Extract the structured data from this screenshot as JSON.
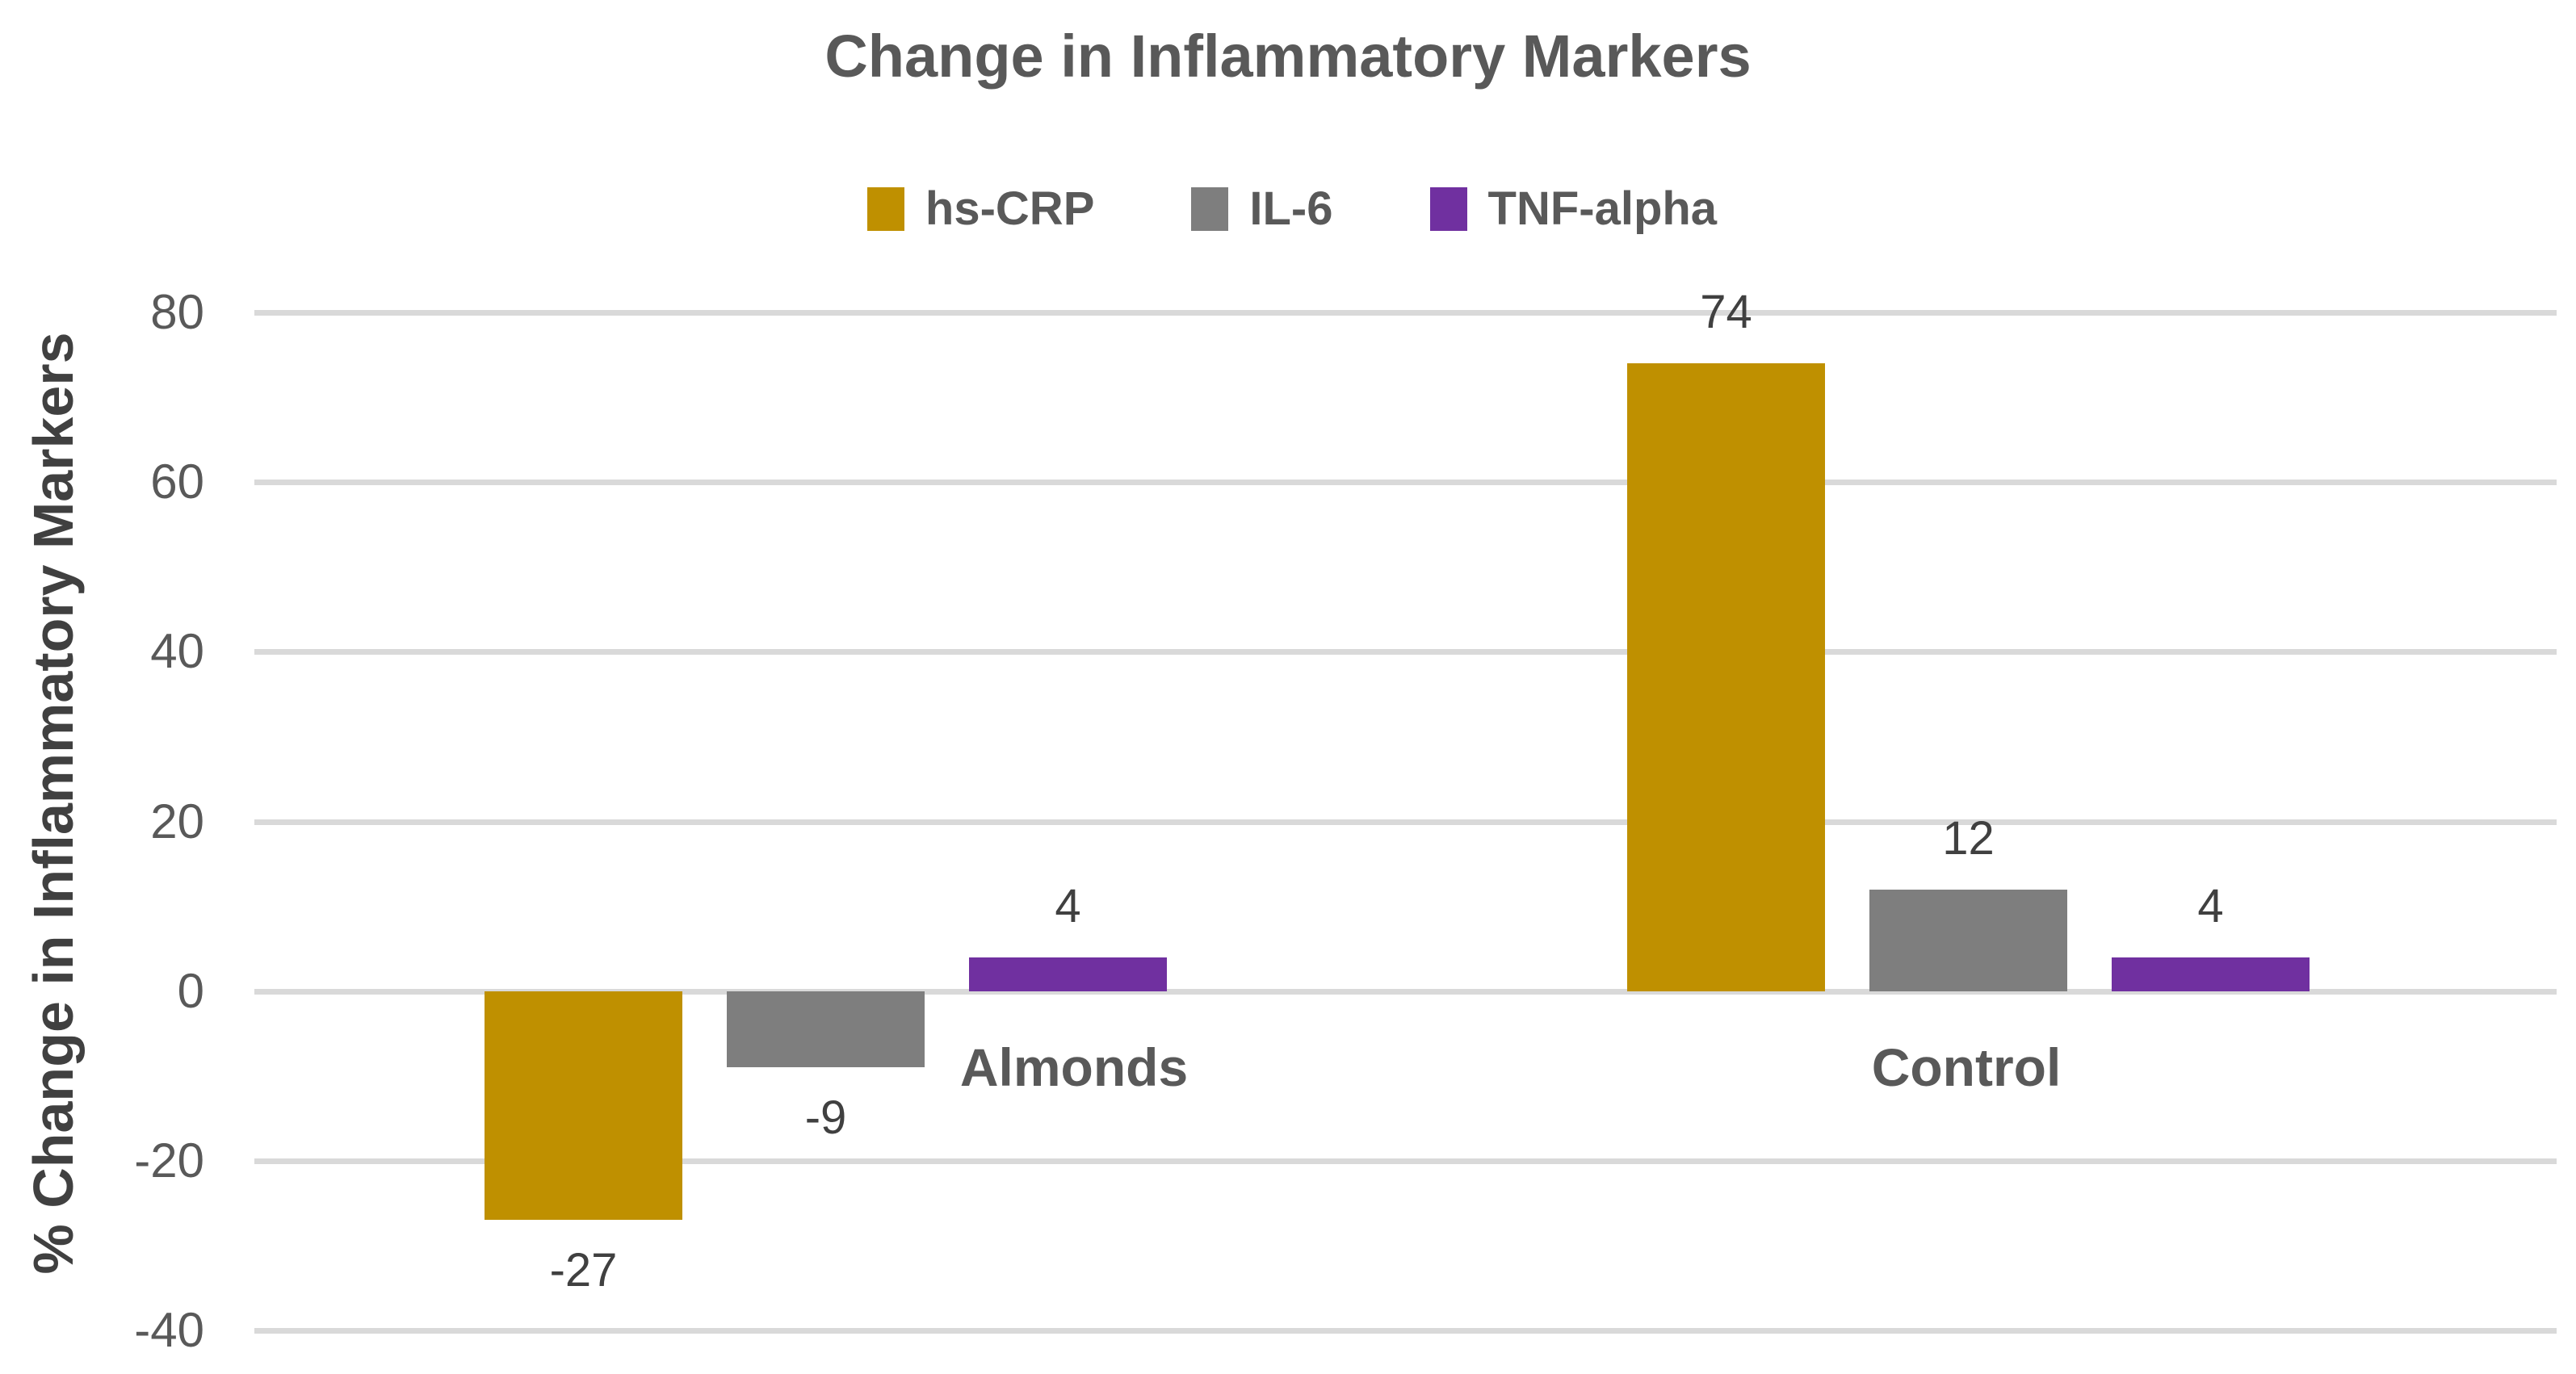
{
  "chart_data": {
    "type": "bar",
    "title": "Change in Inflammatory Markers",
    "ylabel": "% Change in Inflammatory Markers",
    "xlabel": "",
    "categories": [
      "Almonds",
      "Control"
    ],
    "series": [
      {
        "name": "hs-CRP",
        "color": "#BF9000",
        "values": [
          -27,
          74
        ]
      },
      {
        "name": "IL-6",
        "color": "#7E7E7E",
        "values": [
          -9,
          12
        ]
      },
      {
        "name": "TNF-alpha",
        "color": "#7030A0",
        "values": [
          4,
          4
        ]
      }
    ],
    "ylim": [
      -40,
      80
    ],
    "yticks": [
      80,
      60,
      40,
      20,
      0,
      -20,
      -40
    ],
    "grid": true,
    "gridline_color": "#D9D9D9",
    "legend_position": "top-center",
    "data_labels": [
      [
        -27,
        -9,
        4
      ],
      [
        74,
        12,
        4
      ]
    ],
    "background_color": "#FFFFFF",
    "title_color": "#595959",
    "tick_label_color": "#595959",
    "data_label_color": "#404040",
    "axis_title_color": "#404040",
    "category_label_color": "#595959"
  }
}
